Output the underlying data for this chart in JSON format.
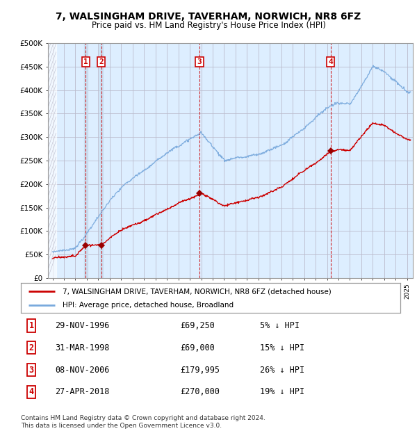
{
  "title": "7, WALSINGHAM DRIVE, TAVERHAM, NORWICH, NR8 6FZ",
  "subtitle": "Price paid vs. HM Land Registry's House Price Index (HPI)",
  "ylim": [
    0,
    500000
  ],
  "yticks": [
    0,
    50000,
    100000,
    150000,
    200000,
    250000,
    300000,
    350000,
    400000,
    450000,
    500000
  ],
  "ytick_labels": [
    "£0",
    "£50K",
    "£100K",
    "£150K",
    "£200K",
    "£250K",
    "£300K",
    "£350K",
    "£400K",
    "£450K",
    "£500K"
  ],
  "xlim_start": 1993.6,
  "xlim_end": 2025.5,
  "sale_dates": [
    1996.91,
    1998.25,
    2006.85,
    2018.32
  ],
  "sale_prices": [
    69250,
    69000,
    179995,
    270000
  ],
  "sale_labels": [
    "1",
    "2",
    "3",
    "4"
  ],
  "sale_label_color": "#cc0000",
  "hpi_color": "#7aaadd",
  "price_line_color": "#cc0000",
  "plot_bg_color": "#ddeeff",
  "grid_color": "#bbbbcc",
  "legend_entries": [
    "7, WALSINGHAM DRIVE, TAVERHAM, NORWICH, NR8 6FZ (detached house)",
    "HPI: Average price, detached house, Broadland"
  ],
  "table_rows": [
    [
      "1",
      "29-NOV-1996",
      "£69,250",
      "5% ↓ HPI"
    ],
    [
      "2",
      "31-MAR-1998",
      "£69,000",
      "15% ↓ HPI"
    ],
    [
      "3",
      "08-NOV-2006",
      "£179,995",
      "26% ↓ HPI"
    ],
    [
      "4",
      "27-APR-2018",
      "£270,000",
      "19% ↓ HPI"
    ]
  ],
  "footer": "Contains HM Land Registry data © Crown copyright and database right 2024.\nThis data is licensed under the Open Government Licence v3.0."
}
